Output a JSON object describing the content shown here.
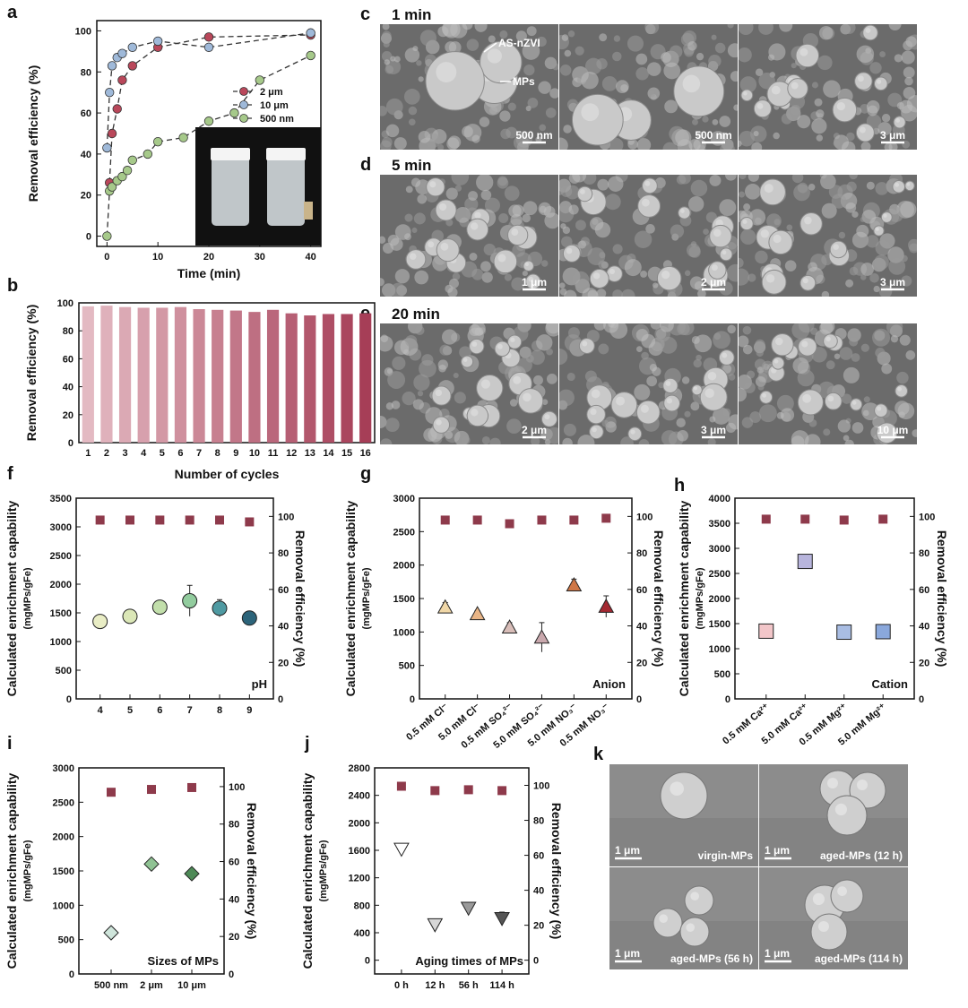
{
  "panel_letters": {
    "a": "a",
    "b": "b",
    "c": "c",
    "d": "d",
    "e": "e",
    "f": "f",
    "g": "g",
    "h": "h",
    "i": "i",
    "j": "j",
    "k": "k"
  },
  "colors": {
    "red": "#b9475a",
    "blue": "#9fb9d9",
    "green": "#a6c98a",
    "brick": "#8e3a4b",
    "bar_light": "#e3b9c2",
    "bar_dark": "#a63e57",
    "sem_bg": "#6b6b6b"
  },
  "sem": {
    "c_title": "1 min",
    "d_title": "5 min",
    "e_title": "20 min",
    "c_arrow1": "AS-nZVI",
    "c_arrow2": "MPs",
    "c_scales": [
      "500 nm",
      "500 nm",
      "3 μm"
    ],
    "d_scales": [
      "1 μm",
      "2 μm",
      "3 μm"
    ],
    "e_scales": [
      "2 μm",
      "3 μm",
      "10 μm"
    ],
    "k_scales": [
      "1 μm",
      "1 μm",
      "1 μm",
      "1 μm"
    ],
    "k_labels": [
      "virgin-MPs",
      "aged-MPs (12 h)",
      "aged-MPs (56 h)",
      "aged-MPs (114 h)"
    ]
  },
  "chart_data": [
    {
      "id": "a",
      "type": "line",
      "xlabel": "Time (min)",
      "ylabel": "Removal efficiency (%)",
      "xlim": [
        -2,
        42
      ],
      "ylim": [
        -5,
        105
      ],
      "xticks": [
        "0",
        "10",
        "20",
        "30",
        "40"
      ],
      "yticks": [
        "0",
        "20",
        "40",
        "60",
        "80",
        "100"
      ],
      "legend_position": "center-right",
      "series": [
        {
          "name": "2 μm",
          "color": "#b9475a",
          "x": [
            0.5,
            1,
            2,
            3,
            5,
            10,
            20,
            40
          ],
          "y": [
            26,
            50,
            62,
            76,
            83,
            92,
            97,
            98
          ]
        },
        {
          "name": "10 μm",
          "color": "#9fb9d9",
          "x": [
            0,
            0.5,
            1,
            2,
            3,
            5,
            10,
            20,
            40
          ],
          "y": [
            43,
            70,
            83,
            87,
            89,
            92,
            95,
            92,
            99
          ]
        },
        {
          "name": "500 nm",
          "color": "#a6c98a",
          "x": [
            0,
            0.5,
            1,
            2,
            3,
            4,
            5,
            8,
            10,
            15,
            20,
            25,
            30,
            40
          ],
          "y": [
            0,
            22,
            24,
            27,
            29,
            32,
            37,
            40,
            46,
            48,
            56,
            60,
            76,
            88
          ]
        }
      ]
    },
    {
      "id": "b",
      "type": "bar",
      "xlabel": "Number of cycles",
      "ylabel": "Removal efficiency (%)",
      "ylim": [
        0,
        100
      ],
      "yticks": [
        "0",
        "20",
        "40",
        "60",
        "80",
        "100"
      ],
      "categories": [
        "1",
        "2",
        "3",
        "4",
        "5",
        "6",
        "7",
        "8",
        "9",
        "10",
        "11",
        "12",
        "13",
        "14",
        "15",
        "16"
      ],
      "values": [
        97.5,
        98,
        97,
        96.5,
        96.5,
        97,
        95.5,
        95,
        94.5,
        93.5,
        95,
        92.5,
        91,
        92,
        92,
        92.5
      ]
    },
    {
      "id": "f",
      "type": "scatter",
      "ylabel": "Calculated enrichment capability",
      "ylabel_sub": "(mgMPs/gFe)",
      "y2label": "Removal efficiency (%)",
      "annotation": "pH",
      "ylim": [
        0,
        3500
      ],
      "yticks": [
        "0",
        "500",
        "1000",
        "1500",
        "2000",
        "2500",
        "3000",
        "3500"
      ],
      "y2ticks": [
        "0",
        "20",
        "40",
        "60",
        "80",
        "100"
      ],
      "categories": [
        "4",
        "5",
        "6",
        "7",
        "8",
        "9"
      ],
      "capability": [
        1350,
        1440,
        1600,
        1710,
        1580,
        1410
      ],
      "capability_err": [
        70,
        50,
        30,
        270,
        150,
        80
      ],
      "removal": [
        98,
        98,
        98,
        98,
        98,
        97
      ],
      "marker_colors": [
        "#e9edc5",
        "#dbe7b7",
        "#c2dfab",
        "#92cc9e",
        "#4f9aa2",
        "#2c647a"
      ]
    },
    {
      "id": "g",
      "type": "scatter",
      "ylabel": "Calculated enrichment capability",
      "ylabel_sub": "(mgMPs/gFe)",
      "y2label": "Removal efficiency (%)",
      "annotation": "Anion",
      "ylim": [
        0,
        3000
      ],
      "yticks": [
        "0",
        "500",
        "1000",
        "1500",
        "2000",
        "2500",
        "3000"
      ],
      "y2ticks": [
        "0",
        "20",
        "40",
        "60",
        "80",
        "100"
      ],
      "categories": [
        "0.5 mM Cl⁻",
        "5.0 mM Cl⁻",
        "0.5 mM SO₄²⁻",
        "5.0 mM SO₄²⁻",
        "5.0 mM NO₃⁻",
        "0.5 mM NO₃⁻"
      ],
      "capability": [
        1370,
        1270,
        1070,
        920,
        1700,
        1380
      ],
      "capability_err": [
        70,
        50,
        70,
        220,
        90,
        160
      ],
      "removal": [
        98,
        98,
        96,
        98,
        98,
        99
      ],
      "marker_colors": [
        "#f0d7a7",
        "#e9b586",
        "#d8bdb8",
        "#c9a8ad",
        "#cf7746",
        "#a42932"
      ]
    },
    {
      "id": "h",
      "type": "scatter",
      "ylabel": "Calculated enrichment capability",
      "ylabel_sub": "(mgMPs/gFe)",
      "y2label": "Removal efficiency (%)",
      "annotation": "Cation",
      "ylim": [
        0,
        4000
      ],
      "yticks": [
        "0",
        "500",
        "1000",
        "1500",
        "2000",
        "2500",
        "3000",
        "3500",
        "4000"
      ],
      "y2ticks": [
        "0",
        "20",
        "40",
        "60",
        "80",
        "100"
      ],
      "categories": [
        "0.5 mM Ca²⁺",
        "5.0 mM Ca²⁺",
        "0.5 mM Mg²⁺",
        "5.0 mM Mg²⁺"
      ],
      "capability": [
        1350,
        2740,
        1330,
        1340
      ],
      "capability_err": [
        60,
        110,
        50,
        50
      ],
      "removal": [
        98.5,
        98.5,
        98,
        98.5
      ],
      "marker_colors": [
        "#f2c6c9",
        "#b8b5dd",
        "#a9bde3",
        "#8aa8dc"
      ]
    },
    {
      "id": "i",
      "type": "scatter",
      "ylabel": "Calculated enrichment capability",
      "ylabel_sub": "(mgMPs/gFe)",
      "y2label": "Removal efficiency (%)",
      "annotation": "Sizes of MPs",
      "ylim": [
        0,
        3000
      ],
      "yticks": [
        "0",
        "500",
        "1000",
        "1500",
        "2000",
        "2500",
        "3000"
      ],
      "y2ticks": [
        "0",
        "20",
        "40",
        "60",
        "80",
        "100"
      ],
      "categories": [
        "500 nm",
        "2 μm",
        "10 μm"
      ],
      "capability": [
        600,
        1600,
        1460
      ],
      "capability_err": [
        50,
        40,
        40
      ],
      "removal": [
        97,
        98.5,
        99.5
      ],
      "marker_colors": [
        "#cfe5db",
        "#8fc293",
        "#4e8a57"
      ]
    },
    {
      "id": "j",
      "type": "scatter",
      "ylabel": "Calculated enrichment capability",
      "ylabel_sub": "(mgMPs/gFe)",
      "y2label": "Removal efficiency (%)",
      "annotation": "Aging times of MPs",
      "ylim": [
        -200,
        2800
      ],
      "yticks": [
        "0",
        "400",
        "800",
        "1200",
        "1600",
        "2000",
        "2400",
        "2800"
      ],
      "y2ticks": [
        "0",
        "20",
        "40",
        "60",
        "80",
        "100"
      ],
      "categories": [
        "0 h",
        "12 h",
        "56 h",
        "114 h"
      ],
      "capability": [
        1620,
        520,
        760,
        610
      ],
      "capability_err": [
        40,
        40,
        50,
        90
      ],
      "removal": [
        99.5,
        97,
        97.5,
        97
      ],
      "marker_colors": [
        "#ffffff",
        "#d7d7d7",
        "#9a9a9a",
        "#555555"
      ]
    }
  ]
}
